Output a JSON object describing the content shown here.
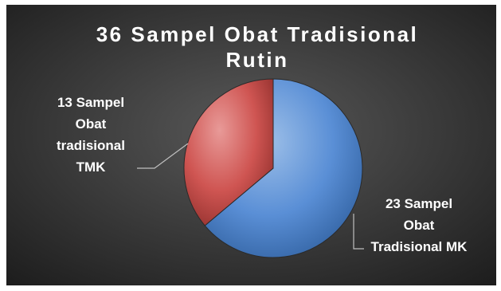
{
  "chart_data": {
    "type": "pie",
    "title": "36 Sampel Obat Tradisional Rutin",
    "title_lines": [
      "36 Sampel Obat Tradisional",
      "Rutin"
    ],
    "slices": [
      {
        "label": "23 Sampel Obat Tradisional MK",
        "label_lines": [
          "23 Sampel",
          "Obat",
          "Tradisional MK"
        ],
        "value": 23,
        "color": "#4f81bd"
      },
      {
        "label": "13 Sampel Obat tradisional TMK",
        "label_lines": [
          "13 Sampel",
          "Obat",
          "tradisional",
          "TMK"
        ],
        "value": 13,
        "color": "#c0504d"
      }
    ],
    "background": "#3a3a3a",
    "text_color": "#ffffff",
    "legend": "none"
  }
}
